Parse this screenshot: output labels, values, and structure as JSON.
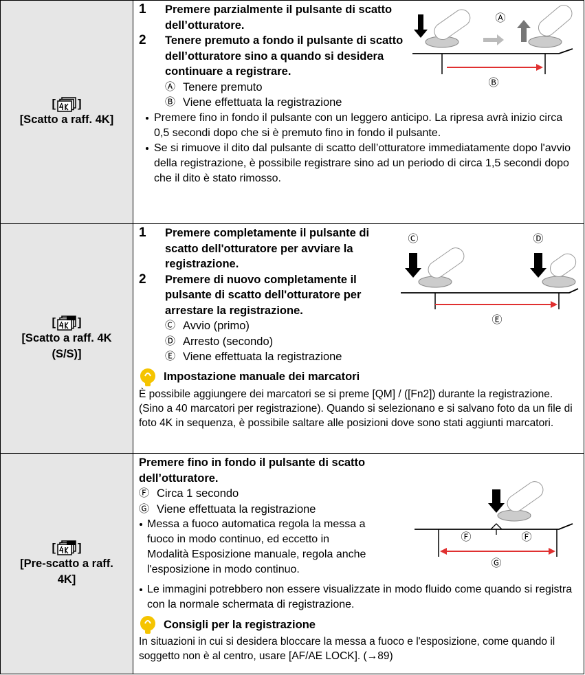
{
  "rows": [
    {
      "bracket_open": "[",
      "bracket_close": "]",
      "label": "[Scatto a raff. 4K]",
      "steps": [
        {
          "number": "1",
          "text": "Premere parzialmente il pulsante di scatto dell’otturatore."
        },
        {
          "number": "2",
          "text": "Tenere premuto a fondo il pulsante di scatto dell’otturatore sino a quando si desidera continuare a registrare."
        }
      ],
      "legend": [
        {
          "letter": "Ⓐ",
          "text": "Tenere premuto"
        },
        {
          "letter": "Ⓑ",
          "text": "Viene effettuata la registrazione"
        }
      ],
      "notes": [
        "Premere fino in fondo il pulsante con un leggero anticipo. La ripresa avrà inizio circa 0,5 secondi dopo che si è premuto fino in fondo il pulsante.",
        "Se si rimuove il dito dal pulsante di scatto dell’otturatore immediatamente dopo l'avvio della registrazione, è possibile registrare sino ad un periodo di circa 1,5 secondi dopo che il dito è stato rimosso."
      ]
    },
    {
      "bracket_open": "[",
      "bracket_close": "]",
      "label": "[Scatto a raff. 4K (S/S)]",
      "steps": [
        {
          "number": "1",
          "text": "Premere completamente il pulsante di scatto dell'otturatore per avviare la registrazione."
        },
        {
          "number": "2",
          "text": "Premere di nuovo completamente il pulsante di scatto dell'otturatore per arrestare la registrazione."
        }
      ],
      "legend": [
        {
          "letter": "Ⓒ",
          "text": "Avvio (primo)"
        },
        {
          "letter": "Ⓓ",
          "text": "Arresto (secondo)"
        },
        {
          "letter": "Ⓔ",
          "text": "Viene effettuata la registrazione"
        }
      ],
      "tip": {
        "heading": "Impostazione manuale dei marcatori",
        "text": "È possibile aggiungere dei marcatori se si preme [QM] / ([Fn2]) durante la registrazione. (Sino a 40 marcatori per registrazione). Quando si selezionano e si salvano foto da un file di foto 4K in sequenza, è possibile saltare alle posizioni dove sono stati aggiunti marcatori."
      }
    },
    {
      "bracket_open": "[",
      "bracket_close": "]",
      "label": "[Pre-scatto a raff. 4K]",
      "heading": "Premere fino in fondo il pulsante di scatto dell’otturatore.",
      "legend": [
        {
          "letter": "Ⓕ",
          "text": "Circa 1 secondo"
        },
        {
          "letter": "Ⓖ",
          "text": "Viene effettuata la registrazione"
        }
      ],
      "notes": [
        "Messa a fuoco automatica regola la messa a fuoco in modo continuo, ed eccetto in Modalità Esposizione manuale, regola anche l'esposizione in modo continuo.",
        "Le immagini potrebbero non essere visualizzate in modo fluido come quando si registra con la normale schermata di registrazione."
      ],
      "tip": {
        "heading": "Consigli per la registrazione",
        "text": "In situazioni in cui si desidera bloccare la messa a fuoco e l'esposizione, come quando il soggetto non è al centro, usare [AF/AE LOCK]. (→89)"
      }
    }
  ]
}
